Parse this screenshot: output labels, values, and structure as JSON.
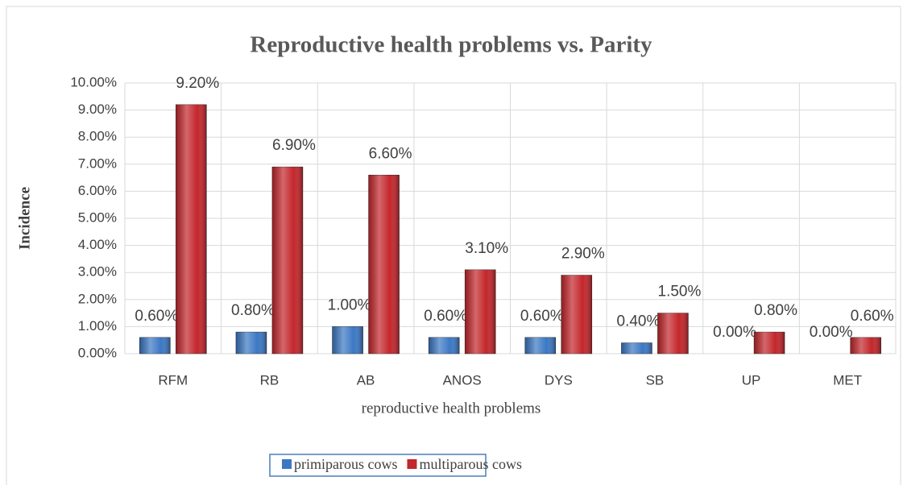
{
  "chart_data": {
    "type": "bar",
    "title": "Reproductive health problems vs. Parity",
    "x_label": "reproductive health problems",
    "y_label": "Incidence",
    "categories": [
      "RFM",
      "RB",
      "AB",
      "ANOS",
      "DYS",
      "SB",
      "UP",
      "MET"
    ],
    "series": [
      {
        "name": "primiparous cows",
        "color": "#3b78c4",
        "values": [
          0.6,
          0.8,
          1.0,
          0.6,
          0.6,
          0.4,
          0.0,
          0.0
        ],
        "value_labels": [
          "0.60%",
          "0.80%",
          "1.00%",
          "0.60%",
          "0.60%",
          "0.40%",
          "0.00%",
          "0.00%"
        ]
      },
      {
        "name": "multiparous cows",
        "color": "#c3262b",
        "values": [
          9.2,
          6.9,
          6.6,
          3.1,
          2.9,
          1.5,
          0.8,
          0.6
        ],
        "value_labels": [
          "9.20%",
          "6.90%",
          "6.60%",
          "3.10%",
          "2.90%",
          "1.50%",
          "0.80%",
          "0.60%"
        ]
      }
    ],
    "ylim": [
      0,
      10
    ],
    "yticks": [
      {
        "value": 0,
        "label": "0.00%"
      },
      {
        "value": 1,
        "label": "1.00%"
      },
      {
        "value": 2,
        "label": "2.00%"
      },
      {
        "value": 3,
        "label": "3.00%"
      },
      {
        "value": 4,
        "label": "4.00%"
      },
      {
        "value": 5,
        "label": "5.00%"
      },
      {
        "value": 6,
        "label": "6.00%"
      },
      {
        "value": 7,
        "label": "7.00%"
      },
      {
        "value": 8,
        "label": "8.00%"
      },
      {
        "value": 9,
        "label": "9.00%"
      },
      {
        "value": 10,
        "label": "10.00%"
      }
    ],
    "grid": true,
    "legend": "bottom"
  }
}
